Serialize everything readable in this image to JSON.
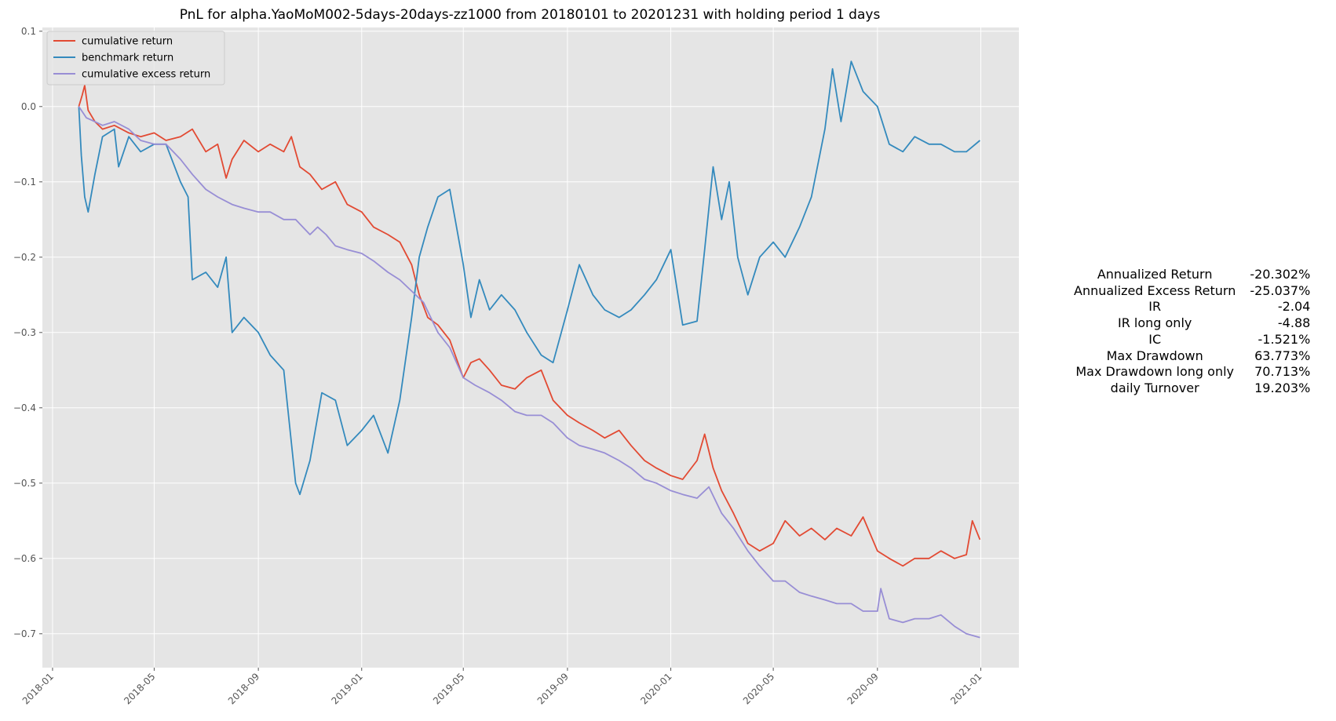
{
  "chart_data": {
    "type": "line",
    "title": "PnL for alpha.YaoMoM002-5days-20days-zz1000 from 20180101 to 20201231 with holding period 1 days",
    "x_axis": {
      "type": "date",
      "range": [
        "2017-12-20",
        "2021-02-15"
      ],
      "ticks": [
        "2018-01-01",
        "2018-05-01",
        "2018-09-01",
        "2019-01-01",
        "2019-05-01",
        "2019-09-01",
        "2020-01-01",
        "2020-05-01",
        "2020-09-01",
        "2021-01-01"
      ],
      "tick_labels": [
        "2018-01",
        "2018-05",
        "2018-09",
        "2019-01",
        "2019-05",
        "2019-09",
        "2020-01",
        "2020-05",
        "2020-09",
        "2021-01"
      ]
    },
    "y_axis": {
      "range": [
        -0.745,
        0.105
      ],
      "ticks": [
        0.1,
        0.0,
        -0.1,
        -0.2,
        -0.3,
        -0.4,
        -0.5,
        -0.6,
        -0.7
      ],
      "tick_labels": [
        "0.1",
        "0.0",
        "−0.1",
        "−0.2",
        "−0.3",
        "−0.4",
        "−0.5",
        "−0.6",
        "−0.7"
      ]
    },
    "grid": true,
    "legend_position": "top-left",
    "series": [
      {
        "name": "cumulative return",
        "color": "#E24A33",
        "points": [
          [
            "2018-02-01",
            0.0
          ],
          [
            "2018-02-05",
            0.015
          ],
          [
            "2018-02-08",
            0.028
          ],
          [
            "2018-02-12",
            -0.005
          ],
          [
            "2018-02-20",
            -0.02
          ],
          [
            "2018-03-01",
            -0.03
          ],
          [
            "2018-03-15",
            -0.025
          ],
          [
            "2018-04-01",
            -0.035
          ],
          [
            "2018-04-15",
            -0.04
          ],
          [
            "2018-05-01",
            -0.035
          ],
          [
            "2018-05-15",
            -0.045
          ],
          [
            "2018-06-01",
            -0.04
          ],
          [
            "2018-06-15",
            -0.03
          ],
          [
            "2018-07-01",
            -0.06
          ],
          [
            "2018-07-15",
            -0.05
          ],
          [
            "2018-07-25",
            -0.095
          ],
          [
            "2018-08-01",
            -0.07
          ],
          [
            "2018-08-15",
            -0.045
          ],
          [
            "2018-09-01",
            -0.06
          ],
          [
            "2018-09-15",
            -0.05
          ],
          [
            "2018-10-01",
            -0.06
          ],
          [
            "2018-10-10",
            -0.04
          ],
          [
            "2018-10-20",
            -0.08
          ],
          [
            "2018-11-01",
            -0.09
          ],
          [
            "2018-11-15",
            -0.11
          ],
          [
            "2018-12-01",
            -0.1
          ],
          [
            "2018-12-15",
            -0.13
          ],
          [
            "2019-01-01",
            -0.14
          ],
          [
            "2019-01-15",
            -0.16
          ],
          [
            "2019-02-01",
            -0.17
          ],
          [
            "2019-02-15",
            -0.18
          ],
          [
            "2019-03-01",
            -0.21
          ],
          [
            "2019-03-10",
            -0.25
          ],
          [
            "2019-03-20",
            -0.28
          ],
          [
            "2019-04-01",
            -0.29
          ],
          [
            "2019-04-15",
            -0.31
          ],
          [
            "2019-05-01",
            -0.36
          ],
          [
            "2019-05-10",
            -0.34
          ],
          [
            "2019-05-20",
            -0.335
          ],
          [
            "2019-06-01",
            -0.35
          ],
          [
            "2019-06-15",
            -0.37
          ],
          [
            "2019-07-01",
            -0.375
          ],
          [
            "2019-07-15",
            -0.36
          ],
          [
            "2019-08-01",
            -0.35
          ],
          [
            "2019-08-15",
            -0.39
          ],
          [
            "2019-09-01",
            -0.41
          ],
          [
            "2019-09-15",
            -0.42
          ],
          [
            "2019-10-01",
            -0.43
          ],
          [
            "2019-10-15",
            -0.44
          ],
          [
            "2019-11-01",
            -0.43
          ],
          [
            "2019-11-15",
            -0.45
          ],
          [
            "2019-12-01",
            -0.47
          ],
          [
            "2019-12-15",
            -0.48
          ],
          [
            "2020-01-01",
            -0.49
          ],
          [
            "2020-01-15",
            -0.495
          ],
          [
            "2020-02-01",
            -0.47
          ],
          [
            "2020-02-10",
            -0.435
          ],
          [
            "2020-02-20",
            -0.48
          ],
          [
            "2020-03-01",
            -0.51
          ],
          [
            "2020-03-15",
            -0.54
          ],
          [
            "2020-04-01",
            -0.58
          ],
          [
            "2020-04-15",
            -0.59
          ],
          [
            "2020-05-01",
            -0.58
          ],
          [
            "2020-05-15",
            -0.55
          ],
          [
            "2020-06-01",
            -0.57
          ],
          [
            "2020-06-15",
            -0.56
          ],
          [
            "2020-07-01",
            -0.575
          ],
          [
            "2020-07-15",
            -0.56
          ],
          [
            "2020-08-01",
            -0.57
          ],
          [
            "2020-08-15",
            -0.545
          ],
          [
            "2020-09-01",
            -0.59
          ],
          [
            "2020-09-15",
            -0.6
          ],
          [
            "2020-10-01",
            -0.61
          ],
          [
            "2020-10-15",
            -0.6
          ],
          [
            "2020-11-01",
            -0.6
          ],
          [
            "2020-11-15",
            -0.59
          ],
          [
            "2020-12-01",
            -0.6
          ],
          [
            "2020-12-15",
            -0.595
          ],
          [
            "2020-12-22",
            -0.55
          ],
          [
            "2020-12-31",
            -0.575
          ]
        ]
      },
      {
        "name": "benchmark return",
        "color": "#348ABD",
        "points": [
          [
            "2018-02-01",
            0.0
          ],
          [
            "2018-02-04",
            -0.065
          ],
          [
            "2018-02-08",
            -0.12
          ],
          [
            "2018-02-12",
            -0.14
          ],
          [
            "2018-02-20",
            -0.09
          ],
          [
            "2018-03-01",
            -0.04
          ],
          [
            "2018-03-15",
            -0.03
          ],
          [
            "2018-03-20",
            -0.08
          ],
          [
            "2018-04-01",
            -0.04
          ],
          [
            "2018-04-15",
            -0.06
          ],
          [
            "2018-05-01",
            -0.05
          ],
          [
            "2018-05-15",
            -0.05
          ],
          [
            "2018-06-01",
            -0.1
          ],
          [
            "2018-06-10",
            -0.12
          ],
          [
            "2018-06-15",
            -0.23
          ],
          [
            "2018-07-01",
            -0.22
          ],
          [
            "2018-07-15",
            -0.24
          ],
          [
            "2018-07-25",
            -0.2
          ],
          [
            "2018-08-01",
            -0.3
          ],
          [
            "2018-08-15",
            -0.28
          ],
          [
            "2018-09-01",
            -0.3
          ],
          [
            "2018-09-15",
            -0.33
          ],
          [
            "2018-10-01",
            -0.35
          ],
          [
            "2018-10-15",
            -0.5
          ],
          [
            "2018-10-20",
            -0.515
          ],
          [
            "2018-11-01",
            -0.47
          ],
          [
            "2018-11-15",
            -0.38
          ],
          [
            "2018-12-01",
            -0.39
          ],
          [
            "2018-12-15",
            -0.45
          ],
          [
            "2019-01-01",
            -0.43
          ],
          [
            "2019-01-15",
            -0.41
          ],
          [
            "2019-02-01",
            -0.46
          ],
          [
            "2019-02-15",
            -0.39
          ],
          [
            "2019-03-01",
            -0.28
          ],
          [
            "2019-03-10",
            -0.2
          ],
          [
            "2019-03-20",
            -0.16
          ],
          [
            "2019-04-01",
            -0.12
          ],
          [
            "2019-04-15",
            -0.11
          ],
          [
            "2019-05-01",
            -0.21
          ],
          [
            "2019-05-10",
            -0.28
          ],
          [
            "2019-05-20",
            -0.23
          ],
          [
            "2019-06-01",
            -0.27
          ],
          [
            "2019-06-15",
            -0.25
          ],
          [
            "2019-07-01",
            -0.27
          ],
          [
            "2019-07-15",
            -0.3
          ],
          [
            "2019-08-01",
            -0.33
          ],
          [
            "2019-08-15",
            -0.34
          ],
          [
            "2019-09-01",
            -0.27
          ],
          [
            "2019-09-15",
            -0.21
          ],
          [
            "2019-10-01",
            -0.25
          ],
          [
            "2019-10-15",
            -0.27
          ],
          [
            "2019-11-01",
            -0.28
          ],
          [
            "2019-11-15",
            -0.27
          ],
          [
            "2019-12-01",
            -0.25
          ],
          [
            "2019-12-15",
            -0.23
          ],
          [
            "2020-01-01",
            -0.19
          ],
          [
            "2020-01-15",
            -0.29
          ],
          [
            "2020-02-01",
            -0.285
          ],
          [
            "2020-02-10",
            -0.19
          ],
          [
            "2020-02-20",
            -0.08
          ],
          [
            "2020-03-01",
            -0.15
          ],
          [
            "2020-03-10",
            -0.1
          ],
          [
            "2020-03-20",
            -0.2
          ],
          [
            "2020-04-01",
            -0.25
          ],
          [
            "2020-04-15",
            -0.2
          ],
          [
            "2020-05-01",
            -0.18
          ],
          [
            "2020-05-15",
            -0.2
          ],
          [
            "2020-06-01",
            -0.16
          ],
          [
            "2020-06-15",
            -0.12
          ],
          [
            "2020-07-01",
            -0.03
          ],
          [
            "2020-07-10",
            0.05
          ],
          [
            "2020-07-20",
            -0.02
          ],
          [
            "2020-08-01",
            0.06
          ],
          [
            "2020-08-15",
            0.02
          ],
          [
            "2020-09-01",
            0.0
          ],
          [
            "2020-09-15",
            -0.05
          ],
          [
            "2020-10-01",
            -0.06
          ],
          [
            "2020-10-15",
            -0.04
          ],
          [
            "2020-11-01",
            -0.05
          ],
          [
            "2020-11-15",
            -0.05
          ],
          [
            "2020-12-01",
            -0.06
          ],
          [
            "2020-12-15",
            -0.06
          ],
          [
            "2020-12-31",
            -0.045
          ]
        ]
      },
      {
        "name": "cumulative excess return",
        "color": "#988ED5",
        "points": [
          [
            "2018-02-01",
            0.0
          ],
          [
            "2018-02-10",
            -0.015
          ],
          [
            "2018-02-20",
            -0.02
          ],
          [
            "2018-03-01",
            -0.025
          ],
          [
            "2018-03-15",
            -0.02
          ],
          [
            "2018-04-01",
            -0.03
          ],
          [
            "2018-04-15",
            -0.045
          ],
          [
            "2018-05-01",
            -0.05
          ],
          [
            "2018-05-15",
            -0.05
          ],
          [
            "2018-06-01",
            -0.07
          ],
          [
            "2018-06-15",
            -0.09
          ],
          [
            "2018-07-01",
            -0.11
          ],
          [
            "2018-07-15",
            -0.12
          ],
          [
            "2018-08-01",
            -0.13
          ],
          [
            "2018-08-15",
            -0.135
          ],
          [
            "2018-09-01",
            -0.14
          ],
          [
            "2018-09-15",
            -0.14
          ],
          [
            "2018-10-01",
            -0.15
          ],
          [
            "2018-10-15",
            -0.15
          ],
          [
            "2018-11-01",
            -0.17
          ],
          [
            "2018-11-10",
            -0.16
          ],
          [
            "2018-11-20",
            -0.17
          ],
          [
            "2018-12-01",
            -0.185
          ],
          [
            "2018-12-15",
            -0.19
          ],
          [
            "2019-01-01",
            -0.195
          ],
          [
            "2019-01-15",
            -0.205
          ],
          [
            "2019-02-01",
            -0.22
          ],
          [
            "2019-02-15",
            -0.23
          ],
          [
            "2019-03-01",
            -0.245
          ],
          [
            "2019-03-15",
            -0.26
          ],
          [
            "2019-04-01",
            -0.3
          ],
          [
            "2019-04-15",
            -0.32
          ],
          [
            "2019-05-01",
            -0.36
          ],
          [
            "2019-05-15",
            -0.37
          ],
          [
            "2019-06-01",
            -0.38
          ],
          [
            "2019-06-15",
            -0.39
          ],
          [
            "2019-07-01",
            -0.405
          ],
          [
            "2019-07-15",
            -0.41
          ],
          [
            "2019-08-01",
            -0.41
          ],
          [
            "2019-08-15",
            -0.42
          ],
          [
            "2019-09-01",
            -0.44
          ],
          [
            "2019-09-15",
            -0.45
          ],
          [
            "2019-10-01",
            -0.455
          ],
          [
            "2019-10-15",
            -0.46
          ],
          [
            "2019-11-01",
            -0.47
          ],
          [
            "2019-11-15",
            -0.48
          ],
          [
            "2019-12-01",
            -0.495
          ],
          [
            "2019-12-15",
            -0.5
          ],
          [
            "2020-01-01",
            -0.51
          ],
          [
            "2020-01-15",
            -0.515
          ],
          [
            "2020-02-01",
            -0.52
          ],
          [
            "2020-02-15",
            -0.505
          ],
          [
            "2020-03-01",
            -0.54
          ],
          [
            "2020-03-15",
            -0.56
          ],
          [
            "2020-04-01",
            -0.59
          ],
          [
            "2020-04-15",
            -0.61
          ],
          [
            "2020-05-01",
            -0.63
          ],
          [
            "2020-05-15",
            -0.63
          ],
          [
            "2020-06-01",
            -0.645
          ],
          [
            "2020-06-15",
            -0.65
          ],
          [
            "2020-07-01",
            -0.655
          ],
          [
            "2020-07-15",
            -0.66
          ],
          [
            "2020-08-01",
            -0.66
          ],
          [
            "2020-08-15",
            -0.67
          ],
          [
            "2020-09-01",
            -0.67
          ],
          [
            "2020-09-05",
            -0.64
          ],
          [
            "2020-09-15",
            -0.68
          ],
          [
            "2020-10-01",
            -0.685
          ],
          [
            "2020-10-15",
            -0.68
          ],
          [
            "2020-11-01",
            -0.68
          ],
          [
            "2020-11-15",
            -0.675
          ],
          [
            "2020-12-01",
            -0.69
          ],
          [
            "2020-12-15",
            -0.7
          ],
          [
            "2020-12-31",
            -0.705
          ]
        ]
      }
    ]
  },
  "stats": {
    "rows": [
      {
        "label": "Annualized Return",
        "value": "-20.302%"
      },
      {
        "label": "Annualized Excess Return",
        "value": "-25.037%"
      },
      {
        "label": "IR",
        "value": "-2.04"
      },
      {
        "label": "IR long only",
        "value": "-4.88"
      },
      {
        "label": "IC",
        "value": "-1.521%"
      },
      {
        "label": "Max Drawdown",
        "value": "63.773%"
      },
      {
        "label": "Max Drawdown long only",
        "value": "70.713%"
      },
      {
        "label": "daily Turnover",
        "value": "19.203%"
      }
    ]
  },
  "colors": {
    "plot_background": "#E5E5E5",
    "grid": "#FFFFFF"
  }
}
